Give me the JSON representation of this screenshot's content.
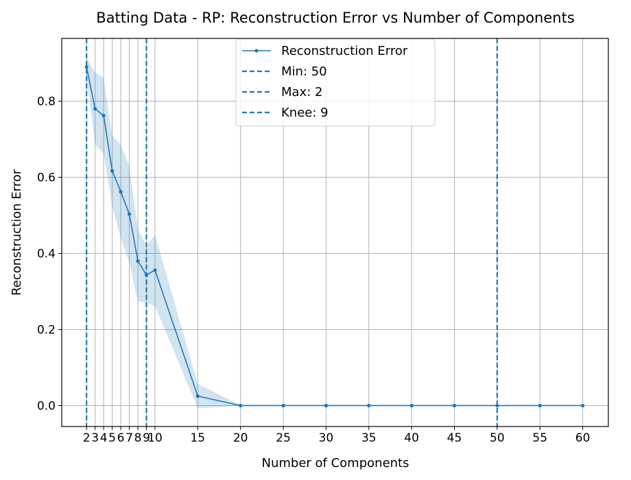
{
  "chart_data": {
    "type": "line",
    "title": "Batting Data - RP: Reconstruction Error vs Number of Components",
    "xlabel": "Number of Components",
    "ylabel": "Reconstruction Error",
    "xlim": [
      -0.9,
      63
    ],
    "ylim": [
      -0.055,
      0.965
    ],
    "grid": true,
    "legend_position": "top-center",
    "x_ticks": [
      2,
      3,
      4,
      5,
      6,
      7,
      8,
      9,
      10,
      15,
      20,
      25,
      30,
      35,
      40,
      45,
      50,
      55,
      60
    ],
    "y_ticks": [
      0.0,
      0.2,
      0.4,
      0.6,
      0.8
    ],
    "y_tick_labels": [
      "0.0",
      "0.2",
      "0.4",
      "0.6",
      "0.8"
    ],
    "series": [
      {
        "name": "Reconstruction Error",
        "color": "#1f77b4",
        "x": [
          2,
          3,
          4,
          5,
          6,
          7,
          8,
          9,
          10,
          15,
          20,
          25,
          30,
          35,
          40,
          45,
          50,
          55,
          60
        ],
        "values": [
          0.89,
          0.78,
          0.762,
          0.617,
          0.562,
          0.503,
          0.38,
          0.343,
          0.356,
          0.025,
          0.0,
          0.0,
          0.0,
          0.0,
          0.0,
          0.0,
          0.0,
          0.0,
          0.0
        ],
        "band_upper": [
          0.915,
          0.875,
          0.862,
          0.71,
          0.685,
          0.63,
          0.465,
          0.42,
          0.45,
          0.057,
          0.001,
          0.0,
          0.0,
          0.0,
          0.0,
          0.0,
          0.0,
          0.0,
          0.0
        ],
        "band_lower": [
          0.865,
          0.685,
          0.662,
          0.524,
          0.44,
          0.375,
          0.275,
          0.27,
          0.262,
          -0.007,
          -0.001,
          0.0,
          0.0,
          0.0,
          0.0,
          0.0,
          0.0,
          0.0,
          0.0
        ]
      }
    ],
    "vlines": [
      {
        "name": "Min: 50",
        "x": 50,
        "color": "#1f77b4"
      },
      {
        "name": "Max: 2",
        "x": 2,
        "color": "#1f77b4"
      },
      {
        "name": "Knee: 9",
        "x": 9,
        "color": "#1f77b4"
      }
    ]
  }
}
